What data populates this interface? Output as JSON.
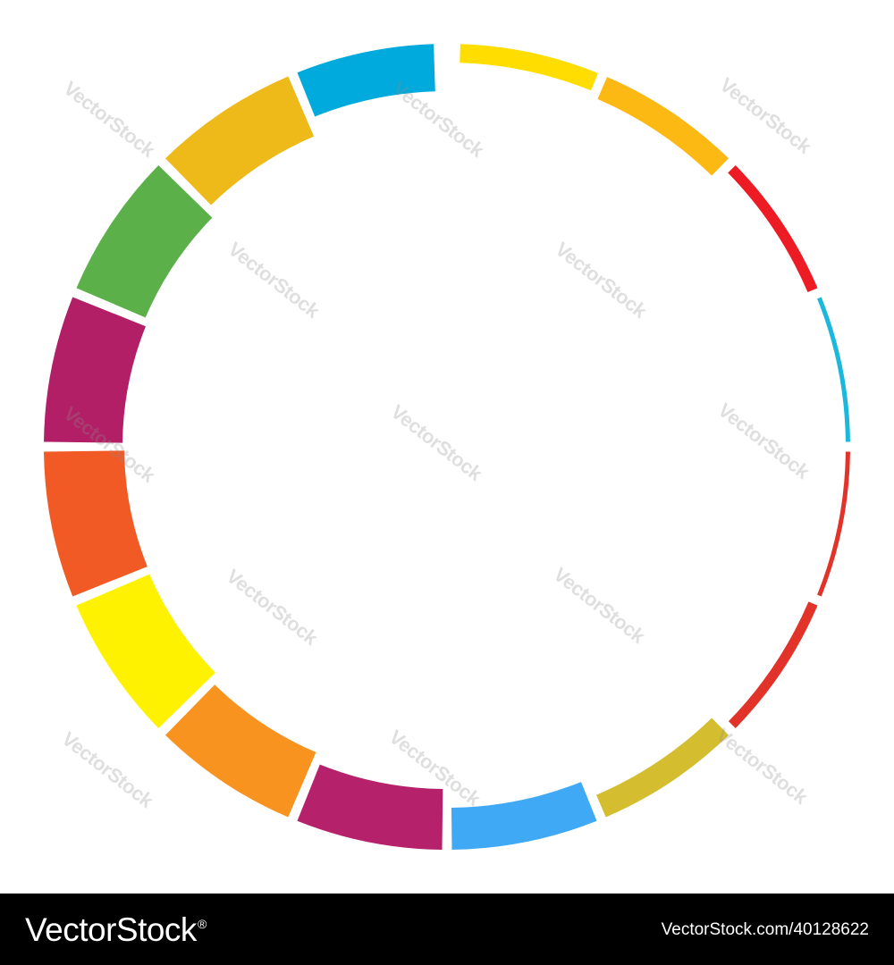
{
  "ring": {
    "segments": [
      {
        "color": "#FFDD00"
      },
      {
        "color": "#FDB913"
      },
      {
        "color": "#ED1C24"
      },
      {
        "color": "#1BB7DC"
      },
      {
        "color": "#E2332A"
      },
      {
        "color": "#E2332A"
      },
      {
        "color": "#D4BE2F"
      },
      {
        "color": "#3FA9F5"
      },
      {
        "color": "#B5216A"
      },
      {
        "color": "#F7931E"
      },
      {
        "color": "#FFF200"
      },
      {
        "color": "#F15A24"
      },
      {
        "color": "#B21F66"
      },
      {
        "color": "#5BB04A"
      },
      {
        "color": "#EDBA1A"
      },
      {
        "color": "#00AADC"
      }
    ]
  },
  "watermark": {
    "text": "VectorStock"
  },
  "footer": {
    "brand": "VectorStock",
    "brand_mark": "®",
    "image_id": "VectorStock.com/40128622"
  }
}
